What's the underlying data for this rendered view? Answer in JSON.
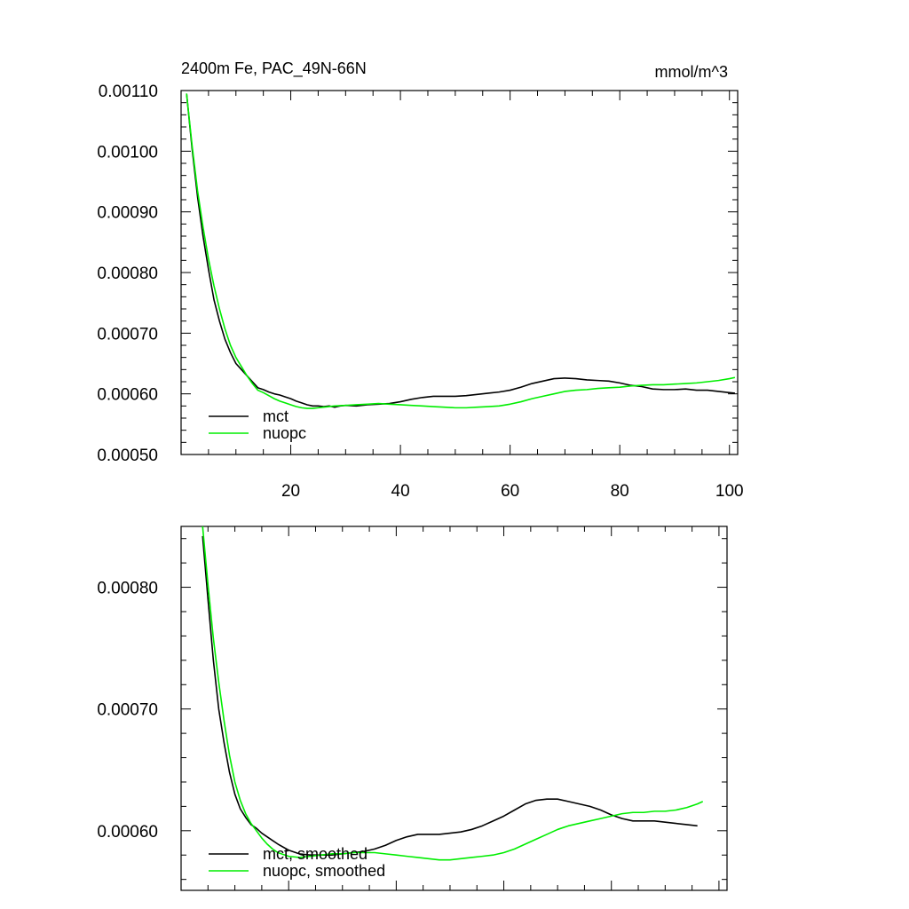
{
  "page_title": "2400m Fe, PAC_49N-66N",
  "units_label": "mmol/m^3",
  "colors": {
    "mct": "#000000",
    "nuopc": "#00ee00"
  },
  "chart_data": [
    {
      "type": "line",
      "title": "2400m Fe, PAC_49N-66N",
      "units": "mmol/m^3",
      "xlabel": "",
      "ylabel": "",
      "xlim": [
        0,
        101.5
      ],
      "ylim": [
        0.0005,
        0.0011
      ],
      "x_ticks": [
        20,
        40,
        60,
        80,
        100
      ],
      "y_ticks": [
        0.0005,
        0.0006,
        0.0007,
        0.0008,
        0.0009,
        0.001,
        0.0011
      ],
      "y_tick_labels": [
        "0.00050",
        "0.00060",
        "0.00070",
        "0.00080",
        "0.00090",
        "0.00100",
        "0.00110"
      ],
      "grid": false,
      "legend_position": "bottom-left",
      "series": [
        {
          "name": "mct",
          "color": "#000000",
          "points": [
            [
              1,
              0.001095
            ],
            [
              2,
              0.001005
            ],
            [
              3,
              0.000925
            ],
            [
              4,
              0.00086
            ],
            [
              5,
              0.000805
            ],
            [
              6,
              0.000755
            ],
            [
              7,
              0.00072
            ],
            [
              8,
              0.00069
            ],
            [
              9,
              0.000668
            ],
            [
              10,
              0.00065
            ],
            [
              11,
              0.00064
            ],
            [
              12,
              0.00063
            ],
            [
              13,
              0.00062
            ],
            [
              14,
              0.00061
            ],
            [
              15,
              0.000607
            ],
            [
              16,
              0.000603
            ],
            [
              17,
              0.0006
            ],
            [
              18,
              0.000598
            ],
            [
              19,
              0.000595
            ],
            [
              20,
              0.000592
            ],
            [
              21,
              0.000588
            ],
            [
              22,
              0.000585
            ],
            [
              23,
              0.000582
            ],
            [
              24,
              0.00058
            ],
            [
              25,
              0.00058
            ],
            [
              26,
              0.000579
            ],
            [
              27,
              0.00058
            ],
            [
              28,
              0.000578
            ],
            [
              29,
              0.00058
            ],
            [
              30,
              0.000581
            ],
            [
              32,
              0.00058
            ],
            [
              34,
              0.000582
            ],
            [
              36,
              0.000583
            ],
            [
              38,
              0.000584
            ],
            [
              40,
              0.000587
            ],
            [
              42,
              0.000591
            ],
            [
              44,
              0.000594
            ],
            [
              46,
              0.000596
            ],
            [
              48,
              0.000596
            ],
            [
              50,
              0.000596
            ],
            [
              52,
              0.000597
            ],
            [
              54,
              0.000599
            ],
            [
              56,
              0.000601
            ],
            [
              58,
              0.000603
            ],
            [
              60,
              0.000606
            ],
            [
              62,
              0.000611
            ],
            [
              64,
              0.000617
            ],
            [
              66,
              0.000621
            ],
            [
              68,
              0.000625
            ],
            [
              70,
              0.000626
            ],
            [
              72,
              0.000625
            ],
            [
              74,
              0.000623
            ],
            [
              76,
              0.000622
            ],
            [
              78,
              0.000621
            ],
            [
              80,
              0.000618
            ],
            [
              82,
              0.000614
            ],
            [
              84,
              0.000612
            ],
            [
              86,
              0.000608
            ],
            [
              88,
              0.000607
            ],
            [
              90,
              0.000607
            ],
            [
              92,
              0.000608
            ],
            [
              94,
              0.000606
            ],
            [
              96,
              0.000606
            ],
            [
              98,
              0.000604
            ],
            [
              100,
              0.000602
            ],
            [
              101,
              0.000601
            ]
          ]
        },
        {
          "name": "nuopc",
          "color": "#00ee00",
          "points": [
            [
              1,
              0.001095
            ],
            [
              2,
              0.00101
            ],
            [
              3,
              0.000935
            ],
            [
              4,
              0.000875
            ],
            [
              5,
              0.000822
            ],
            [
              6,
              0.000778
            ],
            [
              7,
              0.00074
            ],
            [
              8,
              0.000707
            ],
            [
              9,
              0.00068
            ],
            [
              10,
              0.00066
            ],
            [
              11,
              0.000645
            ],
            [
              12,
              0.00063
            ],
            [
              13,
              0.000617
            ],
            [
              14,
              0.000606
            ],
            [
              15,
              0.000602
            ],
            [
              16,
              0.000597
            ],
            [
              17,
              0.000592
            ],
            [
              18,
              0.000588
            ],
            [
              19,
              0.000585
            ],
            [
              20,
              0.000582
            ],
            [
              21,
              0.000579
            ],
            [
              22,
              0.000577
            ],
            [
              23,
              0.000576
            ],
            [
              24,
              0.000576
            ],
            [
              25,
              0.000577
            ],
            [
              26,
              0.000578
            ],
            [
              28,
              0.00058
            ],
            [
              30,
              0.000581
            ],
            [
              32,
              0.000582
            ],
            [
              34,
              0.000583
            ],
            [
              36,
              0.000584
            ],
            [
              38,
              0.000583
            ],
            [
              40,
              0.000582
            ],
            [
              42,
              0.000581
            ],
            [
              44,
              0.00058
            ],
            [
              46,
              0.000579
            ],
            [
              48,
              0.000578
            ],
            [
              50,
              0.000577
            ],
            [
              52,
              0.000577
            ],
            [
              54,
              0.000578
            ],
            [
              56,
              0.000579
            ],
            [
              58,
              0.00058
            ],
            [
              60,
              0.000583
            ],
            [
              62,
              0.000587
            ],
            [
              64,
              0.000592
            ],
            [
              66,
              0.000596
            ],
            [
              68,
              0.0006
            ],
            [
              70,
              0.000604
            ],
            [
              72,
              0.000606
            ],
            [
              74,
              0.000607
            ],
            [
              76,
              0.000609
            ],
            [
              78,
              0.00061
            ],
            [
              80,
              0.000611
            ],
            [
              82,
              0.000613
            ],
            [
              84,
              0.000614
            ],
            [
              86,
              0.000615
            ],
            [
              88,
              0.000615
            ],
            [
              90,
              0.000616
            ],
            [
              92,
              0.000617
            ],
            [
              94,
              0.000618
            ],
            [
              96,
              0.00062
            ],
            [
              98,
              0.000622
            ],
            [
              100,
              0.000625
            ],
            [
              101,
              0.000627
            ]
          ]
        }
      ]
    },
    {
      "type": "line",
      "title": "",
      "xlabel": "",
      "ylabel": "",
      "xlim": [
        0,
        101.5
      ],
      "ylim": [
        0.000551,
        0.00085
      ],
      "x_ticks": [
        20,
        40,
        60,
        80,
        100
      ],
      "x_tick_labels_shown": false,
      "y_ticks": [
        0.0006,
        0.0007,
        0.0008
      ],
      "y_tick_labels": [
        "0.00060",
        "0.00070",
        "0.00080"
      ],
      "grid": false,
      "legend_position": "bottom-left",
      "series": [
        {
          "name": "mct, smoothed",
          "color": "#000000",
          "points": [
            [
              4,
              0.000842
            ],
            [
              5,
              0.00079
            ],
            [
              6,
              0.00074
            ],
            [
              7,
              0.0007
            ],
            [
              8,
              0.000672
            ],
            [
              9,
              0.000648
            ],
            [
              10,
              0.00063
            ],
            [
              11,
              0.000618
            ],
            [
              12,
              0.000611
            ],
            [
              13,
              0.000605
            ],
            [
              14,
              0.000602
            ],
            [
              15,
              0.000598
            ],
            [
              16,
              0.000595
            ],
            [
              17,
              0.000592
            ],
            [
              18,
              0.000589
            ],
            [
              20,
              0.000584
            ],
            [
              22,
              0.000581
            ],
            [
              24,
              0.00058
            ],
            [
              26,
              0.00058
            ],
            [
              28,
              0.00058
            ],
            [
              30,
              0.000581
            ],
            [
              32,
              0.000582
            ],
            [
              34,
              0.000583
            ],
            [
              36,
              0.000585
            ],
            [
              38,
              0.000588
            ],
            [
              40,
              0.000592
            ],
            [
              42,
              0.000595
            ],
            [
              44,
              0.000597
            ],
            [
              46,
              0.000597
            ],
            [
              48,
              0.000597
            ],
            [
              50,
              0.000598
            ],
            [
              52,
              0.000599
            ],
            [
              54,
              0.000601
            ],
            [
              56,
              0.000604
            ],
            [
              58,
              0.000608
            ],
            [
              60,
              0.000612
            ],
            [
              62,
              0.000617
            ],
            [
              64,
              0.000622
            ],
            [
              66,
              0.000625
            ],
            [
              68,
              0.000626
            ],
            [
              70,
              0.000626
            ],
            [
              72,
              0.000624
            ],
            [
              74,
              0.000622
            ],
            [
              76,
              0.00062
            ],
            [
              78,
              0.000617
            ],
            [
              80,
              0.000613
            ],
            [
              82,
              0.00061
            ],
            [
              84,
              0.000608
            ],
            [
              86,
              0.000608
            ],
            [
              88,
              0.000608
            ],
            [
              90,
              0.000607
            ],
            [
              92,
              0.000606
            ],
            [
              94,
              0.000605
            ],
            [
              96,
              0.000604
            ]
          ]
        },
        {
          "name": "nuopc, smoothed",
          "color": "#00ee00",
          "points": [
            [
              4,
              0.00085
            ],
            [
              5,
              0.000802
            ],
            [
              6,
              0.000758
            ],
            [
              7,
              0.000722
            ],
            [
              8,
              0.00069
            ],
            [
              9,
              0.000662
            ],
            [
              10,
              0.00064
            ],
            [
              11,
              0.000625
            ],
            [
              12,
              0.000614
            ],
            [
              13,
              0.000606
            ],
            [
              14,
              0.0006
            ],
            [
              15,
              0.000594
            ],
            [
              16,
              0.000589
            ],
            [
              17,
              0.000585
            ],
            [
              18,
              0.000582
            ],
            [
              20,
              0.000579
            ],
            [
              22,
              0.000578
            ],
            [
              24,
              0.000579
            ],
            [
              26,
              0.00058
            ],
            [
              28,
              0.000581
            ],
            [
              30,
              0.000581
            ],
            [
              32,
              0.000582
            ],
            [
              34,
              0.000582
            ],
            [
              36,
              0.000582
            ],
            [
              38,
              0.000581
            ],
            [
              40,
              0.00058
            ],
            [
              42,
              0.000579
            ],
            [
              44,
              0.000578
            ],
            [
              46,
              0.000577
            ],
            [
              48,
              0.000576
            ],
            [
              50,
              0.000576
            ],
            [
              52,
              0.000577
            ],
            [
              54,
              0.000578
            ],
            [
              56,
              0.000579
            ],
            [
              58,
              0.00058
            ],
            [
              60,
              0.000582
            ],
            [
              62,
              0.000585
            ],
            [
              64,
              0.000589
            ],
            [
              66,
              0.000593
            ],
            [
              68,
              0.000597
            ],
            [
              70,
              0.000601
            ],
            [
              72,
              0.000604
            ],
            [
              74,
              0.000606
            ],
            [
              76,
              0.000608
            ],
            [
              78,
              0.00061
            ],
            [
              80,
              0.000612
            ],
            [
              82,
              0.000614
            ],
            [
              84,
              0.000615
            ],
            [
              86,
              0.000615
            ],
            [
              88,
              0.000616
            ],
            [
              90,
              0.000616
            ],
            [
              92,
              0.000617
            ],
            [
              94,
              0.000619
            ],
            [
              96,
              0.000622
            ],
            [
              97,
              0.000624
            ]
          ]
        }
      ]
    }
  ]
}
